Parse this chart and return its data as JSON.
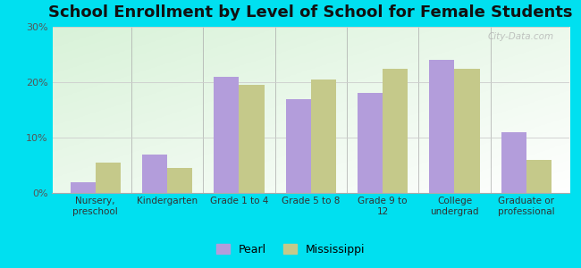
{
  "title": "School Enrollment by Level of School for Female Students",
  "categories": [
    "Nursery,\npreschool",
    "Kindergarten",
    "Grade 1 to 4",
    "Grade 5 to 8",
    "Grade 9 to\n12",
    "College\nundergrad",
    "Graduate or\nprofessional"
  ],
  "pearl_values": [
    2,
    7,
    21,
    17,
    18,
    24,
    11
  ],
  "mississippi_values": [
    5.5,
    4.5,
    19.5,
    20.5,
    22.5,
    22.5,
    6
  ],
  "pearl_color": "#b39ddb",
  "mississippi_color": "#c5c98a",
  "background_color": "#00e0f0",
  "ylim": [
    0,
    30
  ],
  "yticks": [
    0,
    10,
    20,
    30
  ],
  "ytick_labels": [
    "0%",
    "10%",
    "20%",
    "30%"
  ],
  "legend_labels": [
    "Pearl",
    "Mississippi"
  ],
  "title_fontsize": 13,
  "bar_width": 0.35,
  "watermark": "City-Data.com"
}
